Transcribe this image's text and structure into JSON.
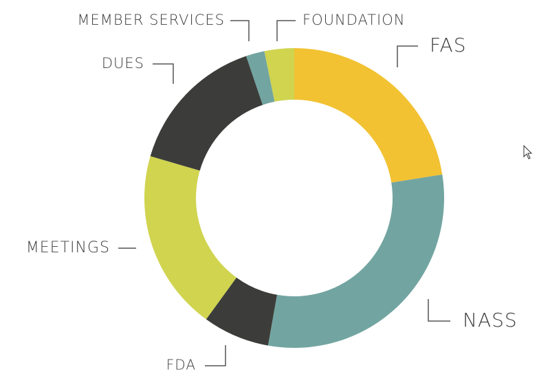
{
  "chart_data": {
    "type": "pie",
    "categories": [
      "FAS",
      "NASS",
      "FDA",
      "MEETINGS",
      "DUES",
      "MEMBER SERVICES",
      "FOUNDATION"
    ],
    "values": [
      22.5,
      30.3,
      7.2,
      19.5,
      15.3,
      2.0,
      3.2
    ],
    "colors": [
      "#f2c232",
      "#72a5a1",
      "#3c3d3a",
      "#d0d44f",
      "#3c3d3a",
      "#72a5a1",
      "#d0d44f"
    ]
  }
}
